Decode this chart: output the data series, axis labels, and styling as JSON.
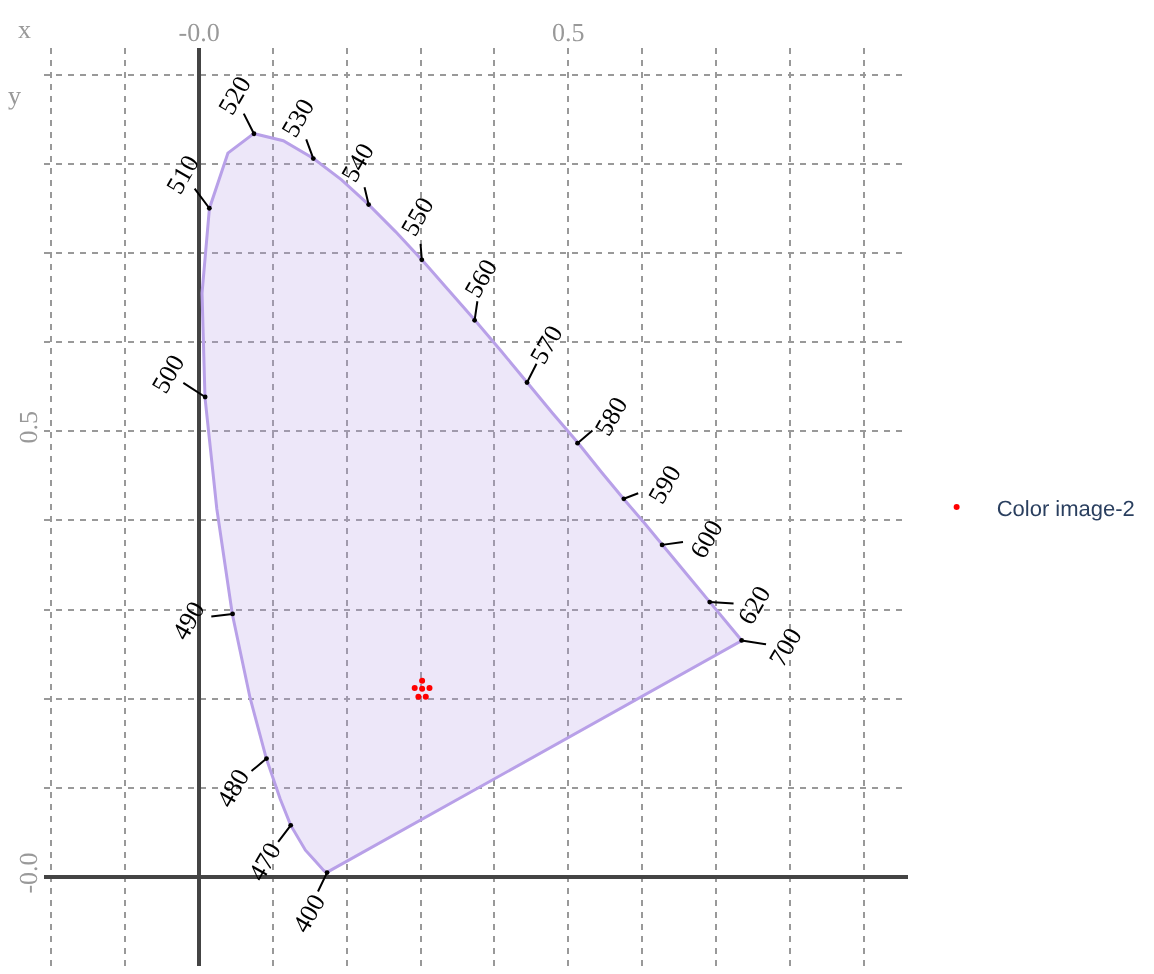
{
  "chart_data": {
    "type": "area",
    "xlabel": "x",
    "ylabel": "y",
    "xlim": [
      -0.21,
      0.96
    ],
    "ylim": [
      -0.1,
      0.93
    ],
    "xticks": [
      {
        "value": -0.2,
        "label": null
      },
      {
        "value": -0.1,
        "label": null
      },
      {
        "value": 0,
        "label": "-0.0"
      },
      {
        "value": 0.1,
        "label": null
      },
      {
        "value": 0.2,
        "label": null
      },
      {
        "value": 0.3,
        "label": null
      },
      {
        "value": 0.4,
        "label": null
      },
      {
        "value": 0.5,
        "label": "0.5"
      },
      {
        "value": 0.6,
        "label": null
      },
      {
        "value": 0.7,
        "label": null
      },
      {
        "value": 0.8,
        "label": null
      },
      {
        "value": 0.9,
        "label": null
      }
    ],
    "yticks": [
      {
        "value": 0,
        "label": "-0.0"
      },
      {
        "value": 0.1,
        "label": null
      },
      {
        "value": 0.2,
        "label": null
      },
      {
        "value": 0.3,
        "label": null
      },
      {
        "value": 0.4,
        "label": null
      },
      {
        "value": 0.5,
        "label": "0.5"
      },
      {
        "value": 0.6,
        "label": null
      },
      {
        "value": 0.7,
        "label": null
      },
      {
        "value": 0.8,
        "label": null
      },
      {
        "value": 0.9,
        "label": null
      }
    ],
    "grid": true,
    "legend": "right",
    "series": [
      {
        "color": "#b8a0e8",
        "marker": "none",
        "x": [
          0.173,
          0.169,
          0.157,
          0.144,
          0.124,
          0.11,
          0.091,
          0.069,
          0.045,
          0.024,
          0.008,
          0.004,
          0.014,
          0.039,
          0.074,
          0.114,
          0.155,
          0.193,
          0.23,
          0.266,
          0.302,
          0.337,
          0.373,
          0.409,
          0.444,
          0.479,
          0.513,
          0.545,
          0.575,
          0.603,
          0.627,
          0.666,
          0.692,
          0.735,
          0.173
        ],
        "values": [
          0.005,
          0.007,
          0.018,
          0.03,
          0.058,
          0.087,
          0.133,
          0.201,
          0.295,
          0.413,
          0.538,
          0.655,
          0.75,
          0.812,
          0.834,
          0.826,
          0.806,
          0.782,
          0.754,
          0.724,
          0.692,
          0.659,
          0.625,
          0.59,
          0.555,
          0.52,
          0.487,
          0.454,
          0.424,
          0.397,
          0.373,
          0.334,
          0.308,
          0.265,
          0.005
        ]
      },
      {
        "type": "scatter",
        "name": "Color image-2",
        "color": "#ff0000",
        "marker": "circle",
        "x": [
          0.292,
          0.302,
          0.312,
          0.297,
          0.307,
          0.302
        ],
        "values": [
          0.212,
          0.22,
          0.212,
          0.202,
          0.202,
          0.211
        ]
      }
    ],
    "annotations": [
      {
        "text": "400",
        "x": 0.1733,
        "y": 0.0048
      },
      {
        "text": "470",
        "x": 0.1241,
        "y": 0.0578
      },
      {
        "text": "480",
        "x": 0.0913,
        "y": 0.1327
      },
      {
        "text": "490",
        "x": 0.0454,
        "y": 0.295
      },
      {
        "text": "500",
        "x": 0.0082,
        "y": 0.5384
      },
      {
        "text": "510",
        "x": 0.0139,
        "y": 0.7502
      },
      {
        "text": "520",
        "x": 0.0743,
        "y": 0.8338
      },
      {
        "text": "530",
        "x": 0.1547,
        "y": 0.8059
      },
      {
        "text": "540",
        "x": 0.2296,
        "y": 0.7543
      },
      {
        "text": "550",
        "x": 0.3016,
        "y": 0.6923
      },
      {
        "text": "560",
        "x": 0.3731,
        "y": 0.6245
      },
      {
        "text": "570",
        "x": 0.4441,
        "y": 0.5547
      },
      {
        "text": "580",
        "x": 0.5125,
        "y": 0.4866
      },
      {
        "text": "590",
        "x": 0.5752,
        "y": 0.4242
      },
      {
        "text": "600",
        "x": 0.627,
        "y": 0.3725
      },
      {
        "text": "620",
        "x": 0.6915,
        "y": 0.3083
      },
      {
        "text": "700",
        "x": 0.7347,
        "y": 0.2653
      }
    ]
  }
}
